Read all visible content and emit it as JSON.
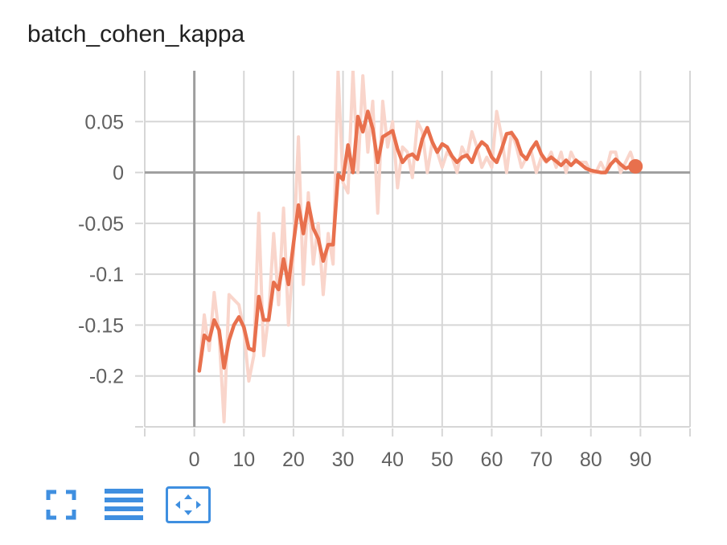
{
  "chart_data": {
    "type": "line",
    "title": "batch_cohen_kappa",
    "xlabel": "",
    "ylabel": "",
    "xlim": [
      -10,
      100
    ],
    "ylim": [
      -0.25,
      0.1
    ],
    "x_ticks": [
      "0",
      "10",
      "20",
      "30",
      "40",
      "50",
      "60",
      "70",
      "80",
      "90"
    ],
    "y_ticks": [
      "0.05",
      "0",
      "-0.05",
      "-0.1",
      "-0.15",
      "-0.2"
    ],
    "grid": true,
    "colors": {
      "smoothed": "#e8704d",
      "raw": "#f9d5cb",
      "grid": "#d6d6d6",
      "axis": "#9e9e9e"
    },
    "series": [
      {
        "role": "raw",
        "x": [
          1,
          2,
          3,
          4,
          5,
          6,
          7,
          8,
          9,
          10,
          11,
          12,
          13,
          14,
          15,
          16,
          17,
          18,
          19,
          20,
          21,
          22,
          23,
          24,
          25,
          26,
          27,
          28,
          29,
          30,
          31,
          32,
          33,
          34,
          35,
          36,
          37,
          38,
          39,
          40,
          41,
          42,
          43,
          44,
          45,
          46,
          47,
          48,
          49,
          50,
          51,
          52,
          53,
          54,
          55,
          56,
          57,
          58,
          59,
          60,
          61,
          62,
          63,
          64,
          65,
          66,
          67,
          68,
          69,
          70,
          71,
          72,
          73,
          74,
          75,
          76,
          77,
          78,
          79,
          80,
          81,
          82,
          83,
          84,
          85,
          86,
          87,
          88,
          89
        ],
        "values": [
          -0.195,
          -0.14,
          -0.175,
          -0.118,
          -0.16,
          -0.245,
          -0.12,
          -0.125,
          -0.13,
          -0.155,
          -0.205,
          -0.18,
          -0.04,
          -0.18,
          -0.14,
          -0.06,
          -0.13,
          -0.035,
          -0.15,
          -0.08,
          0.035,
          -0.11,
          -0.02,
          -0.09,
          -0.05,
          -0.12,
          -0.06,
          -0.09,
          0.1,
          -0.01,
          -0.02,
          0.1,
          0.0,
          0.095,
          0.02,
          0.07,
          -0.04,
          0.07,
          0.025,
          0.05,
          -0.015,
          0.025,
          0.02,
          -0.005,
          0.05,
          0.04,
          0.0,
          0.03,
          0.02,
          0.005,
          0.02,
          0.015,
          0.0,
          0.025,
          0.015,
          0.04,
          0.025,
          0.005,
          0.015,
          0.005,
          0.06,
          0.035,
          0.0,
          0.04,
          0.025,
          0.005,
          0.015,
          0.02,
          0.0,
          0.015,
          0.01,
          0.02,
          0.005,
          0.02,
          0.0,
          0.02,
          0.01,
          0.01,
          0.01,
          0.0,
          0.0,
          0.01,
          0.0,
          0.02,
          0.02,
          0.0,
          0.01,
          0.02,
          0.005
        ]
      },
      {
        "role": "smoothed",
        "x": [
          1,
          2,
          3,
          4,
          5,
          6,
          7,
          8,
          9,
          10,
          11,
          12,
          13,
          14,
          15,
          16,
          17,
          18,
          19,
          20,
          21,
          22,
          23,
          24,
          25,
          26,
          27,
          28,
          29,
          30,
          31,
          32,
          33,
          34,
          35,
          36,
          37,
          38,
          39,
          40,
          41,
          42,
          43,
          44,
          45,
          46,
          47,
          48,
          49,
          50,
          51,
          52,
          53,
          54,
          55,
          56,
          57,
          58,
          59,
          60,
          61,
          62,
          63,
          64,
          65,
          66,
          67,
          68,
          69,
          70,
          71,
          72,
          73,
          74,
          75,
          76,
          77,
          78,
          79,
          80,
          81,
          82,
          83,
          84,
          85,
          86,
          87,
          88,
          89
        ],
        "values": [
          -0.195,
          -0.16,
          -0.165,
          -0.145,
          -0.155,
          -0.192,
          -0.165,
          -0.15,
          -0.142,
          -0.152,
          -0.173,
          -0.175,
          -0.122,
          -0.145,
          -0.145,
          -0.108,
          -0.115,
          -0.085,
          -0.11,
          -0.07,
          -0.032,
          -0.06,
          -0.03,
          -0.055,
          -0.065,
          -0.087,
          -0.071,
          -0.071,
          -0.002,
          -0.007,
          0.027,
          0.0,
          0.055,
          0.04,
          0.06,
          0.043,
          0.01,
          0.035,
          0.038,
          0.041,
          0.023,
          0.01,
          0.016,
          0.018,
          0.013,
          0.033,
          0.044,
          0.03,
          0.02,
          0.028,
          0.025,
          0.016,
          0.01,
          0.015,
          0.017,
          0.01,
          0.023,
          0.03,
          0.026,
          0.015,
          0.01,
          0.023,
          0.038,
          0.039,
          0.032,
          0.018,
          0.013,
          0.023,
          0.03,
          0.018,
          0.011,
          0.015,
          0.011,
          0.007,
          0.012,
          0.007,
          0.012,
          0.008,
          0.004,
          0.002,
          0.001,
          0.0,
          0.0,
          0.008,
          0.013,
          0.008,
          0.004,
          0.006,
          0.006
        ]
      }
    ]
  },
  "toolbar": {
    "buttons": [
      {
        "name": "fullscreen",
        "icon": "fullscreen-icon"
      },
      {
        "name": "toggle-log",
        "icon": "list-icon"
      },
      {
        "name": "fit-domain",
        "icon": "fit-domain-icon"
      }
    ],
    "accent": "#3f8fe0"
  }
}
